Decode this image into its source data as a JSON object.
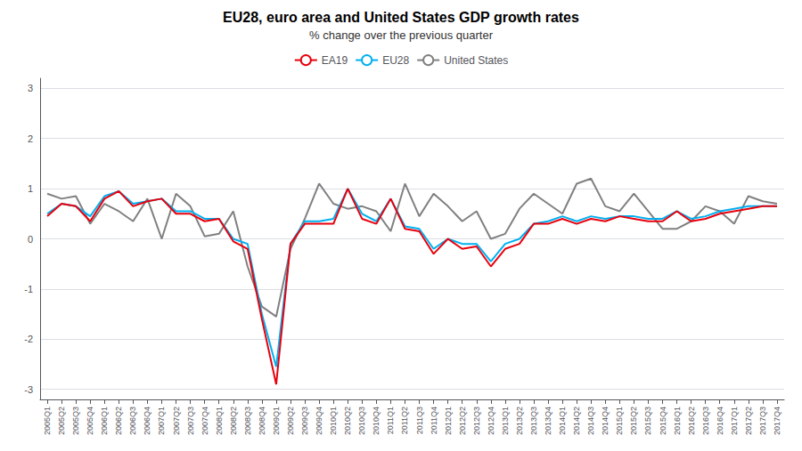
{
  "chart_data": {
    "type": "line",
    "title": "EU28, euro area and United States GDP growth rates",
    "subtitle": "% change over the previous quarter",
    "categories": [
      "2005Q1",
      "2005Q2",
      "2005Q3",
      "2005Q4",
      "2006Q1",
      "2006Q2",
      "2006Q3",
      "2006Q4",
      "2007Q1",
      "2007Q2",
      "2007Q3",
      "2007Q4",
      "2008Q1",
      "2008Q2",
      "2008Q3",
      "2008Q4",
      "2009Q1",
      "2009Q2",
      "2009Q3",
      "2009Q4",
      "2010Q1",
      "2010Q2",
      "2010Q3",
      "2010Q4",
      "2011Q1",
      "2011Q2",
      "2011Q3",
      "2011Q4",
      "2012Q1",
      "2012Q2",
      "2012Q3",
      "2012Q4",
      "2013Q1",
      "2013Q2",
      "2013Q3",
      "2013Q4",
      "2014Q1",
      "2014Q2",
      "2014Q3",
      "2014Q4",
      "2015Q1",
      "2015Q2",
      "2015Q3",
      "2015Q4",
      "2016Q1",
      "2016Q2",
      "2016Q3",
      "2016Q4",
      "2017Q1",
      "2017Q2",
      "2017Q3",
      "2017Q4"
    ],
    "series": [
      {
        "name": "EA19",
        "color": "#e8000d",
        "values": [
          0.45,
          0.7,
          0.65,
          0.35,
          0.8,
          0.95,
          0.65,
          0.75,
          0.8,
          0.5,
          0.5,
          0.35,
          0.4,
          -0.05,
          -0.2,
          -1.6,
          -2.9,
          -0.1,
          0.3,
          0.3,
          0.3,
          1.0,
          0.4,
          0.3,
          0.8,
          0.2,
          0.15,
          -0.3,
          0.0,
          -0.2,
          -0.15,
          -0.55,
          -0.2,
          -0.1,
          0.3,
          0.3,
          0.4,
          0.3,
          0.4,
          0.35,
          0.45,
          0.4,
          0.35,
          0.35,
          0.55,
          0.35,
          0.4,
          0.5,
          0.55,
          0.6,
          0.65,
          0.65
        ]
      },
      {
        "name": "EU28",
        "color": "#00b0f0",
        "values": [
          0.5,
          0.7,
          0.65,
          0.45,
          0.85,
          0.95,
          0.7,
          0.75,
          0.8,
          0.55,
          0.55,
          0.4,
          0.4,
          0.0,
          -0.1,
          -1.5,
          -2.55,
          -0.1,
          0.35,
          0.35,
          0.4,
          1.0,
          0.5,
          0.35,
          0.8,
          0.25,
          0.2,
          -0.2,
          0.0,
          -0.1,
          -0.1,
          -0.45,
          -0.1,
          0.0,
          0.3,
          0.35,
          0.45,
          0.35,
          0.45,
          0.4,
          0.45,
          0.45,
          0.4,
          0.4,
          0.55,
          0.4,
          0.45,
          0.55,
          0.6,
          0.65,
          0.65,
          0.65
        ]
      },
      {
        "name": "United States",
        "color": "#808080",
        "values": [
          0.9,
          0.8,
          0.85,
          0.3,
          0.7,
          0.55,
          0.35,
          0.8,
          0.0,
          0.9,
          0.65,
          0.05,
          0.1,
          0.55,
          -0.55,
          -1.35,
          -1.55,
          -0.2,
          0.4,
          1.1,
          0.7,
          0.6,
          0.65,
          0.55,
          0.15,
          1.1,
          0.45,
          0.9,
          0.65,
          0.35,
          0.55,
          0.0,
          0.1,
          0.6,
          0.9,
          0.7,
          0.5,
          1.1,
          1.2,
          0.65,
          0.55,
          0.9,
          0.55,
          0.2,
          0.2,
          0.35,
          0.65,
          0.55,
          0.3,
          0.85,
          0.75,
          0.7
        ]
      }
    ],
    "ylim": [
      -3.2,
      3.2
    ],
    "yticks": [
      -3,
      -2,
      -1,
      0,
      1,
      2,
      3
    ],
    "grid": true,
    "legend": "top"
  }
}
